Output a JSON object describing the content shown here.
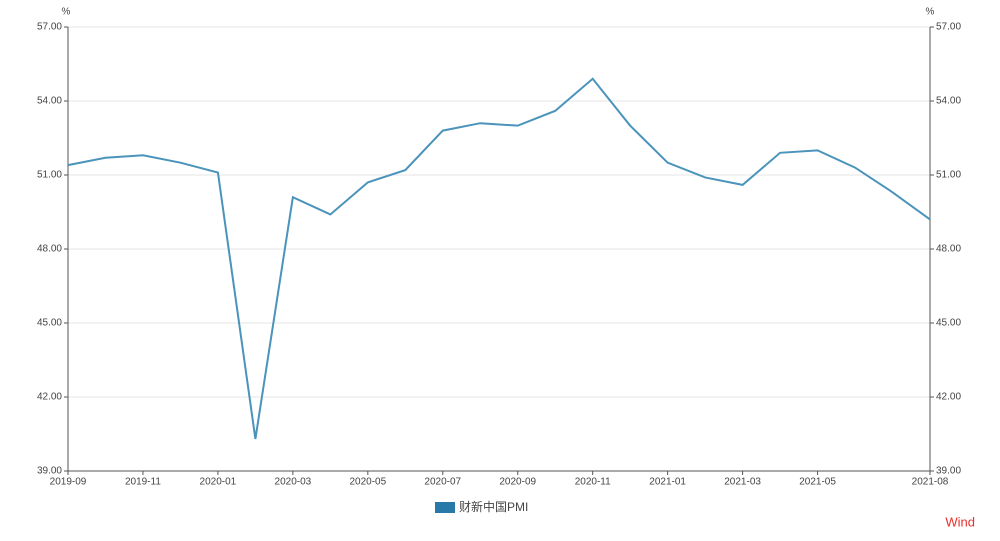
{
  "chart_data": {
    "type": "line",
    "categories": [
      "2019-09",
      null,
      "2019-11",
      null,
      "2020-01",
      null,
      "2020-03",
      null,
      "2020-05",
      null,
      "2020-07",
      null,
      "2020-09",
      null,
      "2020-11",
      null,
      "2021-01",
      null,
      "2021-03",
      null,
      "2021-05",
      null,
      null,
      "2021-08"
    ],
    "series": [
      {
        "name": "财新中国PMI",
        "color": "#4a93bb",
        "legend_color": "#2878a8",
        "values": [
          51.4,
          51.7,
          51.8,
          51.5,
          51.1,
          40.3,
          50.1,
          49.4,
          50.7,
          51.2,
          52.8,
          53.1,
          53.0,
          53.6,
          54.9,
          53.0,
          51.5,
          50.9,
          50.6,
          51.9,
          52.0,
          51.3,
          50.3,
          49.2
        ]
      }
    ],
    "y_unit": "%",
    "y2_unit": "%",
    "ylim": [
      39,
      57
    ],
    "yticks": [
      {
        "value": 39,
        "label": "39.00"
      },
      {
        "value": 42,
        "label": "42.00"
      },
      {
        "value": 45,
        "label": "45.00"
      },
      {
        "value": 48,
        "label": "48.00"
      },
      {
        "value": 51,
        "label": "51.00"
      },
      {
        "value": 54,
        "label": "54.00"
      },
      {
        "value": 57,
        "label": "57.00"
      }
    ],
    "y2lim": [
      39,
      57
    ],
    "y2ticks": [
      {
        "value": 39,
        "label": "39.00"
      },
      {
        "value": 42,
        "label": "42.00"
      },
      {
        "value": 45,
        "label": "45.00"
      },
      {
        "value": 48,
        "label": "48.00"
      },
      {
        "value": 51,
        "label": "51.00"
      },
      {
        "value": 54,
        "label": "54.00"
      },
      {
        "value": 57,
        "label": "57.00"
      }
    ],
    "grid": true,
    "source": "Wind"
  }
}
